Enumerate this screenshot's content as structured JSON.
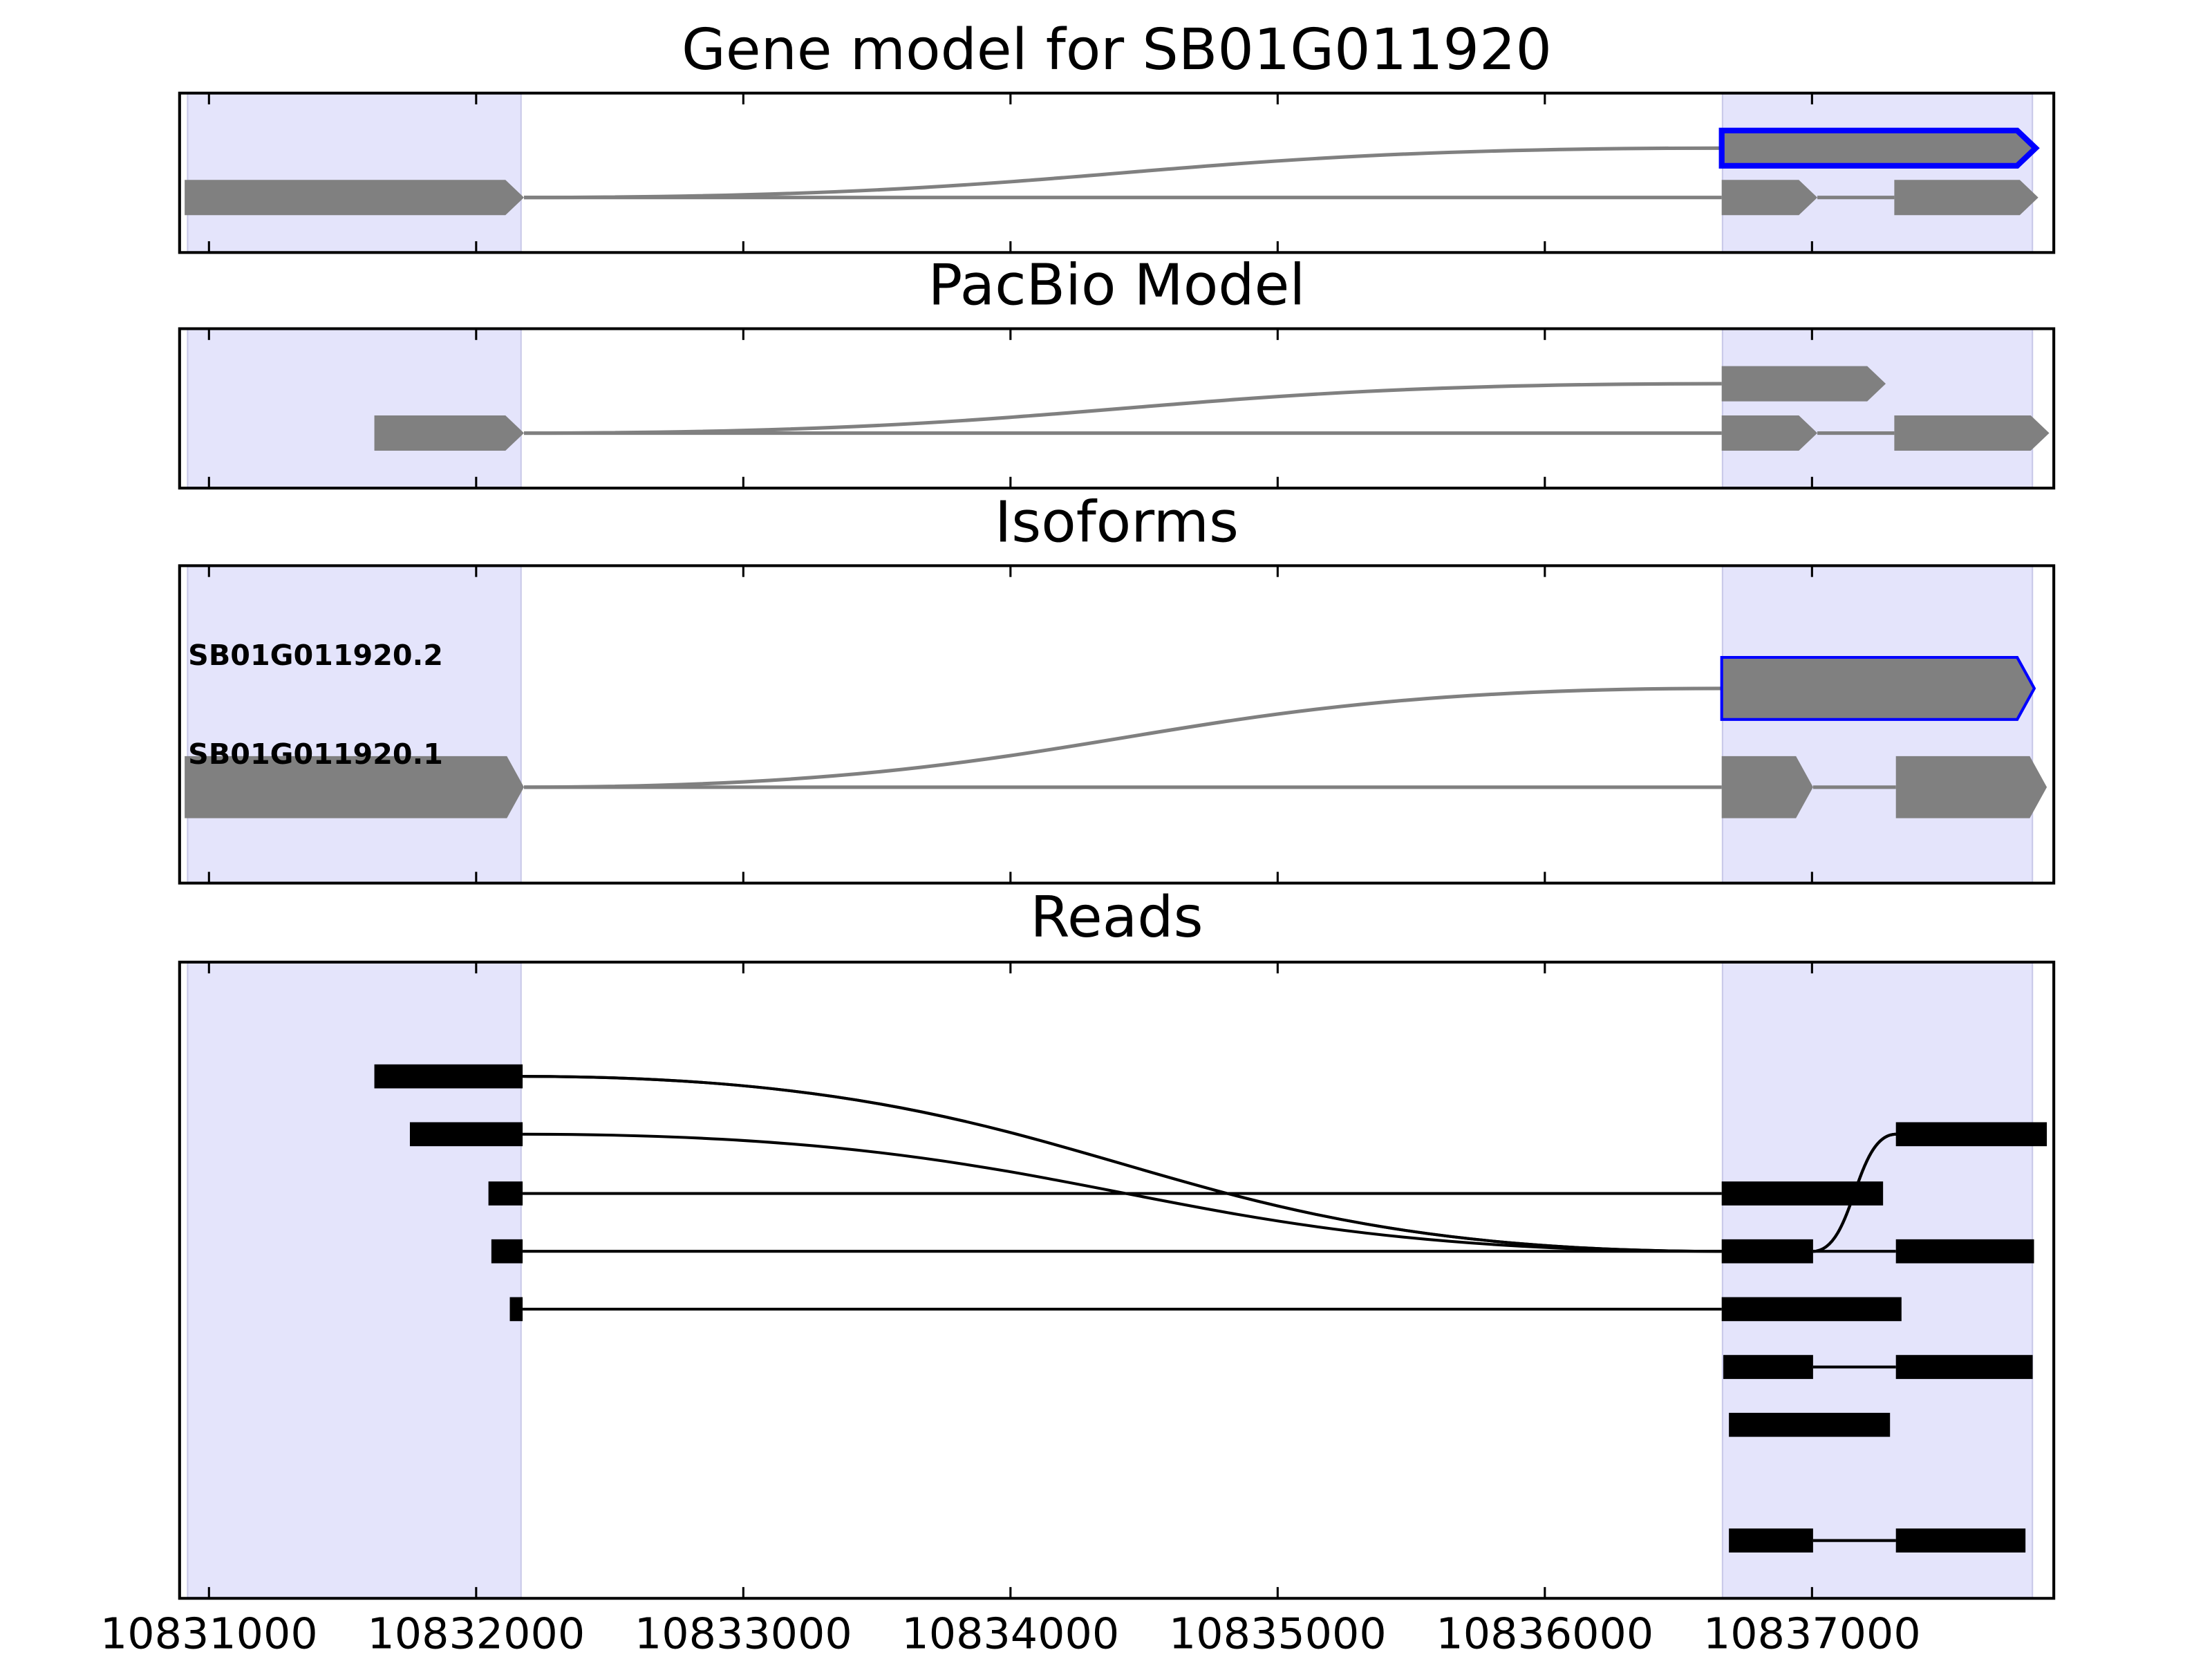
{
  "chart_data": [
    {
      "type": "gene-track",
      "title": "Gene model for SB01G011920",
      "xlim": [
        10830890,
        10837905
      ],
      "xticks": [
        10831000,
        10832000,
        10833000,
        10834000,
        10835000,
        10836000,
        10837000
      ],
      "shaded": [
        [
          10830920,
          10832168
        ],
        [
          10836665,
          10837825
        ]
      ],
      "shade_color": "#e4e4fb",
      "color": "#808080",
      "highlight_color": "#0000ff",
      "arrows": true,
      "transcripts": [
        {
          "highlight": true,
          "exons": [
            [
              10830909,
              10832179
            ],
            [
              10836662,
              10837837
            ]
          ]
        },
        {
          "highlight": false,
          "exons": [
            [
              10830909,
              10832179
            ],
            [
              10836662,
              10837020
            ],
            [
              10837308,
              10837847
            ]
          ]
        }
      ]
    },
    {
      "type": "gene-track",
      "title": "PacBio Model",
      "xlim": [
        10830890,
        10837905
      ],
      "xticks": [
        10831000,
        10832000,
        10833000,
        10834000,
        10835000,
        10836000,
        10837000
      ],
      "shaded": [
        [
          10830920,
          10832168
        ],
        [
          10836665,
          10837825
        ]
      ],
      "shade_color": "#e4e4fb",
      "color": "#808080",
      "highlight_color": "#0000ff",
      "arrows": true,
      "transcripts": [
        {
          "highlight": false,
          "exons": [
            [
              10831619,
              10832179
            ],
            [
              10836662,
              10837276
            ]
          ]
        },
        {
          "highlight": false,
          "exons": [
            [
              10831619,
              10832179
            ],
            [
              10836662,
              10837020
            ],
            [
              10837308,
              10837888
            ]
          ]
        }
      ]
    },
    {
      "type": "gene-track",
      "title": "Isoforms",
      "xlim": [
        10830890,
        10837905
      ],
      "xticks": [
        10831000,
        10832000,
        10833000,
        10834000,
        10835000,
        10836000,
        10837000
      ],
      "shaded": [
        [
          10830920,
          10832168
        ],
        [
          10836665,
          10837825
        ]
      ],
      "shade_color": "#e4e4fb",
      "color": "#808080",
      "highlight_color": "#0000ff",
      "arrows": true,
      "transcripts": [
        {
          "name": "SB01G011920.2",
          "highlight": true,
          "exons": [
            [
              10830909,
              10832179
            ],
            [
              10836662,
              10837832
            ]
          ]
        },
        {
          "name": "SB01G011920.1",
          "highlight": false,
          "exons": [
            [
              10830909,
              10832179
            ],
            [
              10836662,
              10837004
            ],
            [
              10837314,
              10837879
            ]
          ]
        }
      ]
    },
    {
      "type": "gene-track",
      "title": "Reads",
      "xlim": [
        10830890,
        10837905
      ],
      "xticks": [
        10831000,
        10832000,
        10833000,
        10834000,
        10835000,
        10836000,
        10837000
      ],
      "shaded": [
        [
          10830920,
          10832168
        ],
        [
          10836665,
          10837825
        ]
      ],
      "shade_color": "#e4e4fb",
      "color": "#000000",
      "highlight_color": "#0000ff",
      "arrows": false,
      "transcripts": [
        {
          "exons": [
            [
              10831619,
              10832174
            ],
            [
              10836662,
              10837004
            ],
            [
              10837314,
              10837879
            ]
          ]
        },
        {
          "exons": [
            [
              10831619,
              10832174
            ],
            [
              10836662,
              10837004
            ],
            [
              10837314,
              10837879
            ]
          ]
        },
        {
          "exons": [
            [
              10831752,
              10832174
            ],
            [
              10836662,
              10837004
            ],
            [
              10837314,
              10837879
            ]
          ]
        },
        {
          "exons": [
            [
              10832046,
              10832174
            ],
            [
              10836662,
              10837266
            ]
          ]
        },
        {
          "exons": [
            [
              10832057,
              10832174
            ],
            [
              10836662,
              10837004
            ],
            [
              10837314,
              10837831
            ]
          ]
        },
        {
          "exons": [
            [
              10832126,
              10832174
            ],
            [
              10836662,
              10837335
            ]
          ]
        },
        {
          "exons": [
            [
              10836668,
              10837004
            ],
            [
              10837314,
              10837826
            ]
          ]
        },
        {
          "exons": [
            [
              10836689,
              10837292
            ]
          ]
        },
        {
          "exons": [
            [
              10836689,
              10837004
            ],
            [
              10837314,
              10837799
            ]
          ]
        },
        {
          "exons": [
            [
              10836689,
              10837004
            ],
            [
              10837314,
              10837799
            ]
          ]
        }
      ]
    }
  ]
}
